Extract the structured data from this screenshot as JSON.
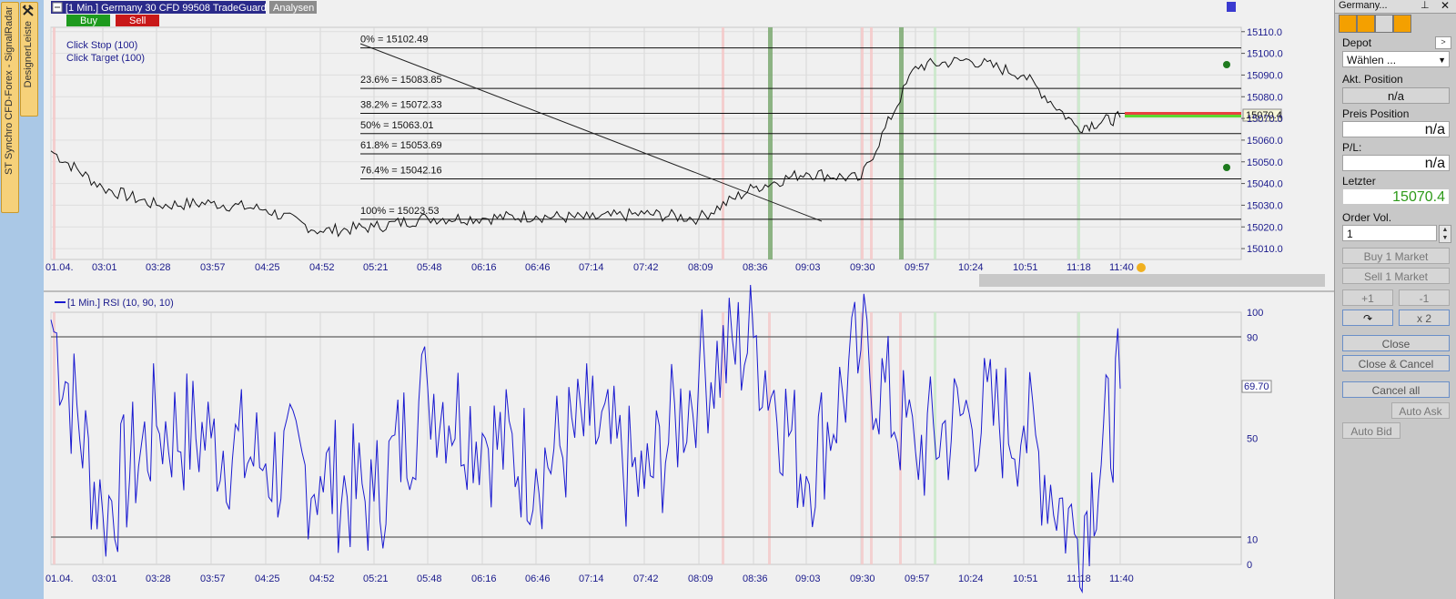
{
  "side_tabs": {
    "designer": "DesignerLeiste",
    "signal": "ST Synchro CFD-Forex - SignalRadar"
  },
  "header": {
    "instrument_label": "[1 Min.] Germany 30 CFD 99508 TradeGuard",
    "analysen": "Analysen",
    "buy": "Buy",
    "sell": "Sell"
  },
  "click_orders": {
    "stop": "Click Stop  (100)",
    "target": "Click Target  (100)"
  },
  "fib_levels": [
    {
      "label": "0% = 15102.49",
      "price": 15102.49
    },
    {
      "label": "23.6% = 15083.85",
      "price": 15083.85
    },
    {
      "label": "38.2% = 15072.33",
      "price": 15072.33
    },
    {
      "label": "50% = 15063.01",
      "price": 15063.01
    },
    {
      "label": "61.8% = 15053.69",
      "price": 15053.69
    },
    {
      "label": "76.4% = 15042.16",
      "price": 15042.16
    },
    {
      "label": "100% = 15023.53",
      "price": 15023.53
    }
  ],
  "price_axis": [
    "15110.0",
    "15100.0",
    "15090.0",
    "15080.0",
    "15070.0",
    "15060.0",
    "15050.0",
    "15040.0",
    "15030.0",
    "15020.0",
    "15010.0"
  ],
  "price_current": "15070.4",
  "time_axis": [
    "01.04.",
    "03:01",
    "03:28",
    "03:57",
    "04:25",
    "04:52",
    "05:21",
    "05:48",
    "06:16",
    "06:46",
    "07:14",
    "07:42",
    "08:09",
    "08:36",
    "09:03",
    "09:30",
    "09:57",
    "10:24",
    "10:51",
    "11:18",
    "11:40"
  ],
  "rsi": {
    "label": "[1 Min.] RSI  (10, 90, 10)",
    "axis": [
      "100",
      "90",
      "50",
      "10",
      "0"
    ],
    "current": "69.70"
  },
  "chart_data": [
    {
      "type": "line",
      "title": "[1 Min.] Germany 30 CFD",
      "x": [
        "01.04.",
        "03:01",
        "03:28",
        "03:57",
        "04:25",
        "04:52",
        "05:21",
        "05:48",
        "06:16",
        "06:46",
        "07:14",
        "07:42",
        "08:09",
        "08:36",
        "09:03",
        "09:30",
        "09:57",
        "10:24",
        "10:51",
        "11:18",
        "11:40"
      ],
      "series": [
        {
          "name": "Germany 30 CFD",
          "values": [
            15055,
            15038,
            15030,
            15031,
            15028,
            15018,
            15020,
            15024,
            15024,
            15025,
            15024,
            15026,
            15024,
            15038,
            15045,
            15042,
            15094,
            15097,
            15090,
            15066,
            15070.4
          ]
        }
      ],
      "ylim": [
        15005,
        15112
      ]
    },
    {
      "type": "line",
      "title": "[1 Min.] RSI  (10, 90, 10)",
      "x": [
        "01.04.",
        "03:01",
        "03:28",
        "03:57",
        "04:25",
        "04:52",
        "05:21",
        "05:48",
        "06:16",
        "06:46",
        "07:14",
        "07:42",
        "08:09",
        "08:36",
        "09:03",
        "09:30",
        "09:57",
        "10:24",
        "10:51",
        "11:18",
        "11:40"
      ],
      "series": [
        {
          "name": "RSI",
          "values": [
            97,
            20,
            55,
            50,
            40,
            35,
            25,
            70,
            52,
            38,
            55,
            30,
            75,
            90,
            35,
            85,
            45,
            60,
            55,
            10,
            69.7
          ]
        }
      ],
      "ylim": [
        0,
        100
      ]
    }
  ],
  "right_panel": {
    "title": "Germany...",
    "depot_label": "Depot",
    "depot_value": "Wählen ...",
    "akt_position_label": "Akt. Position",
    "akt_position_value": "n/a",
    "preis_position_label": "Preis Position",
    "preis_position_value": "n/a",
    "pl_label": "P/L:",
    "pl_value": "n/a",
    "letzter_label": "Letzter",
    "letzter_value": "15070.4",
    "order_vol_label": "Order Vol.",
    "order_vol_value": "1",
    "buy_market": "Buy 1 Market",
    "sell_market": "Sell 1 Market",
    "plus1": "+1",
    "minus1": "-1",
    "x2": "x 2",
    "close": "Close",
    "close_cancel": "Close & Cancel",
    "cancel_all": "Cancel all",
    "auto_ask": "Auto Ask",
    "auto_bid": "Auto Bid"
  },
  "colors": {
    "accent_blue": "#1a1a8c",
    "buy": "#1e9a1e",
    "sell": "#c81818",
    "letzter": "#2e9a1a"
  }
}
